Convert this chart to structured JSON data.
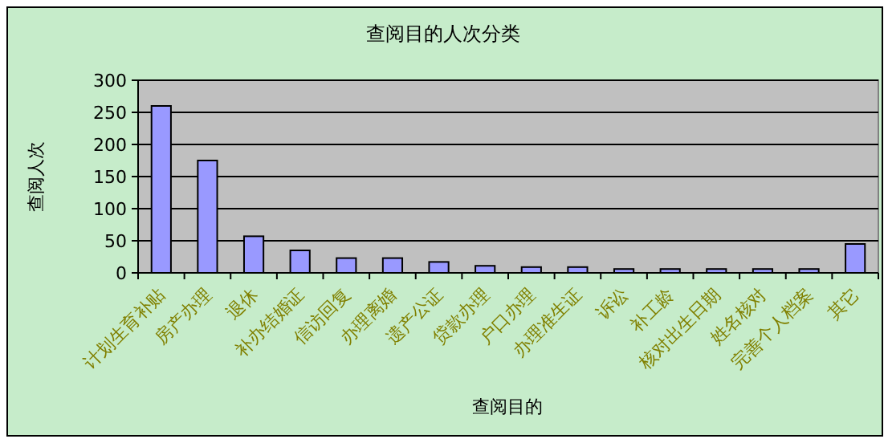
{
  "chart_data": {
    "type": "bar",
    "title": "查阅目的人次分类",
    "xlabel": "查阅目的",
    "ylabel": "查阅人次",
    "categories": [
      "计划生育补贴",
      "房产办理",
      "退休",
      "补办结婚证",
      "信访回复",
      "办理离婚",
      "遗产公证",
      "贷款办理",
      "户口办理",
      "办理准生证",
      "诉讼",
      "补工龄",
      "核对出生日期",
      "姓名核对",
      "完善个人档案",
      "其它"
    ],
    "values": [
      260,
      175,
      57,
      35,
      23,
      23,
      17,
      11,
      9,
      9,
      6,
      6,
      6,
      6,
      6,
      45
    ],
    "color": "#9999ff",
    "ylim": [
      0,
      300
    ],
    "yticks": [
      0,
      50,
      100,
      150,
      200,
      250,
      300
    ],
    "grid": "y"
  }
}
